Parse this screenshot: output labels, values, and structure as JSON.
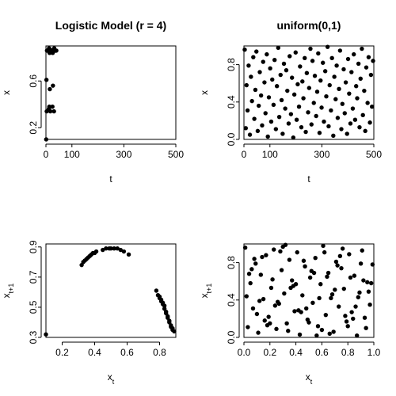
{
  "chart_data": [
    {
      "type": "scatter",
      "title": "Logistic Model (r = 4)",
      "xlabel": "t",
      "ylabel": "x",
      "xlim": [
        0,
        500
      ],
      "ylim": [
        0.1,
        0.9
      ],
      "x_ticks": [
        0,
        100,
        300,
        500
      ],
      "y_ticks": [
        0.2,
        0.6
      ],
      "x_tick_labels": [
        "0",
        "100",
        "300",
        "500"
      ],
      "y_tick_labels": [
        "0.2",
        "0.6"
      ],
      "grid": false,
      "marker_color": "#000000",
      "series": [
        {
          "x": [
            1,
            2,
            3,
            4,
            5,
            6,
            7,
            8,
            9,
            10,
            11,
            12,
            13,
            14,
            15,
            16,
            17,
            18,
            19,
            20,
            21,
            22,
            23,
            24,
            25,
            26,
            27,
            28,
            29,
            30,
            31,
            32,
            33,
            34,
            35,
            36,
            37,
            38,
            39,
            40
          ],
          "y": [
            0.1,
            0.61,
            0.34,
            0.86,
            0.86,
            0.86,
            0.86,
            0.86,
            0.86,
            0.86,
            0.36,
            0.88,
            0.38,
            0.84,
            0.53,
            0.87,
            0.34,
            0.86,
            0.86,
            0.86,
            0.86,
            0.86,
            0.86,
            0.86,
            0.38,
            0.84,
            0.56,
            0.86,
            0.86,
            0.86,
            0.34,
            0.88,
            0.86,
            0.86,
            0.86,
            0.86,
            0.86,
            0.86,
            0.86,
            0.86
          ]
        }
      ]
    },
    {
      "type": "scatter",
      "title": "uniform(0,1)",
      "xlabel": "t",
      "ylabel": "x",
      "xlim": [
        0,
        500
      ],
      "ylim": [
        0,
        1
      ],
      "x_ticks": [
        0,
        100,
        300,
        500
      ],
      "y_ticks": [
        0.0,
        0.4,
        0.8
      ],
      "x_tick_labels": [
        "0",
        "100",
        "300",
        "500"
      ],
      "y_tick_labels": [
        "0.0",
        "0.4",
        "0.8"
      ],
      "grid": false,
      "marker_color": "#000000",
      "series": [
        {
          "x": [
            3,
            7,
            10,
            14,
            18,
            23,
            27,
            31,
            36,
            40,
            44,
            48,
            53,
            57,
            61,
            66,
            70,
            74,
            79,
            83,
            88,
            92,
            96,
            101,
            105,
            109,
            114,
            118,
            123,
            127,
            132,
            136,
            141,
            145,
            149,
            154,
            159,
            163,
            167,
            172,
            176,
            181,
            185,
            190,
            194,
            199,
            203,
            207,
            212,
            216,
            221,
            225,
            229,
            234,
            238,
            242,
            247,
            251,
            256,
            260,
            264,
            269,
            273,
            278,
            282,
            286,
            291,
            295,
            299,
            304,
            308,
            313,
            317,
            322,
            326,
            330,
            335,
            339,
            344,
            348,
            353,
            357,
            361,
            366,
            370,
            375,
            379,
            384,
            388,
            392,
            397,
            401,
            405,
            410,
            414,
            419,
            423,
            428,
            432,
            436,
            441,
            445,
            449,
            454,
            458,
            463,
            467,
            471,
            476,
            480,
            485,
            489,
            493,
            497
          ],
          "y": [
            0.96,
            0.12,
            0.58,
            0.31,
            0.79,
            0.05,
            0.67,
            0.41,
            0.88,
            0.22,
            0.53,
            0.94,
            0.09,
            0.36,
            0.72,
            0.47,
            0.15,
            0.83,
            0.61,
            0.28,
            0.91,
            0.03,
            0.45,
            0.76,
            0.19,
            0.64,
            0.37,
            0.85,
            0.11,
            0.57,
            0.98,
            0.24,
            0.69,
            0.42,
            0.06,
            0.81,
            0.33,
            0.74,
            0.52,
            0.17,
            0.89,
            0.27,
            0.66,
            0.02,
            0.48,
            0.93,
            0.21,
            0.59,
            0.35,
            0.78,
            0.13,
            0.62,
            0.44,
            0.87,
            0.08,
            0.71,
            0.29,
            0.55,
            0.97,
            0.16,
            0.84,
            0.39,
            0.68,
            0.25,
            0.51,
            0.92,
            0.07,
            0.63,
            0.34,
            0.82,
            0.19,
            0.73,
            0.46,
            0.99,
            0.14,
            0.58,
            0.31,
            0.87,
            0.04,
            0.67,
            0.43,
            0.79,
            0.23,
            0.54,
            0.95,
            0.11,
            0.38,
            0.75,
            0.28,
            0.61,
            0.06,
            0.86,
            0.49,
            0.17,
            0.72,
            0.33,
            0.91,
            0.21,
            0.57,
            0.44,
            0.81,
            0.13,
            0.65,
            0.97,
            0.26,
            0.52,
            0.09,
            0.77,
            0.39,
            0.88,
            0.18,
            0.69,
            0.35,
            0.84
          ]
        }
      ]
    },
    {
      "type": "scatter",
      "title": "",
      "xlabel": "x",
      "xlabel_sub": "t",
      "ylabel": "x",
      "ylabel_sub": "t+1",
      "xlim": [
        0.1,
        0.9
      ],
      "ylim": [
        0.3,
        0.92
      ],
      "x_ticks": [
        0.2,
        0.4,
        0.6,
        0.8
      ],
      "y_ticks": [
        0.3,
        0.5,
        0.7,
        0.9
      ],
      "x_tick_labels": [
        "0.2",
        "0.4",
        "0.6",
        "0.8"
      ],
      "y_tick_labels": [
        "0.3",
        "0.5",
        "0.7",
        "0.9"
      ],
      "grid": false,
      "marker_color": "#000000",
      "series": [
        {
          "x": [
            0.1,
            0.32,
            0.33,
            0.34,
            0.35,
            0.36,
            0.37,
            0.38,
            0.39,
            0.4,
            0.41,
            0.45,
            0.47,
            0.49,
            0.5,
            0.52,
            0.54,
            0.56,
            0.58,
            0.61,
            0.78,
            0.79,
            0.8,
            0.8,
            0.81,
            0.81,
            0.82,
            0.82,
            0.83,
            0.83,
            0.84,
            0.84,
            0.85,
            0.85,
            0.86,
            0.86,
            0.87,
            0.87,
            0.88,
            0.88,
            0.89
          ],
          "y": [
            0.32,
            0.78,
            0.8,
            0.81,
            0.82,
            0.83,
            0.84,
            0.85,
            0.86,
            0.86,
            0.87,
            0.88,
            0.89,
            0.89,
            0.89,
            0.89,
            0.89,
            0.88,
            0.87,
            0.85,
            0.61,
            0.58,
            0.57,
            0.56,
            0.55,
            0.54,
            0.53,
            0.52,
            0.51,
            0.49,
            0.47,
            0.46,
            0.44,
            0.43,
            0.41,
            0.4,
            0.38,
            0.37,
            0.36,
            0.35,
            0.34
          ]
        }
      ]
    },
    {
      "type": "scatter",
      "title": "",
      "xlabel": "x",
      "xlabel_sub": "t",
      "ylabel": "x",
      "ylabel_sub": "t+1",
      "xlim": [
        0,
        1
      ],
      "ylim": [
        0,
        1
      ],
      "x_ticks": [
        0.0,
        0.2,
        0.4,
        0.6,
        0.8,
        1.0
      ],
      "y_ticks": [
        0.0,
        0.4,
        0.8
      ],
      "x_tick_labels": [
        "0.0",
        "0.2",
        "0.4",
        "0.6",
        "0.8",
        "1.0"
      ],
      "y_tick_labels": [
        "0.0",
        "0.4",
        "0.8"
      ],
      "grid": false,
      "marker_color": "#000000",
      "series": [
        {
          "x": [
            0.01,
            0.03,
            0.05,
            0.07,
            0.09,
            0.11,
            0.13,
            0.15,
            0.17,
            0.19,
            0.21,
            0.23,
            0.25,
            0.27,
            0.29,
            0.31,
            0.33,
            0.35,
            0.37,
            0.39,
            0.41,
            0.43,
            0.45,
            0.47,
            0.49,
            0.51,
            0.53,
            0.55,
            0.57,
            0.59,
            0.61,
            0.63,
            0.65,
            0.67,
            0.69,
            0.71,
            0.73,
            0.75,
            0.77,
            0.79,
            0.81,
            0.83,
            0.85,
            0.87,
            0.89,
            0.91,
            0.93,
            0.95,
            0.97,
            0.99,
            0.02,
            0.06,
            0.1,
            0.14,
            0.18,
            0.22,
            0.26,
            0.3,
            0.34,
            0.38,
            0.42,
            0.46,
            0.5,
            0.54,
            0.58,
            0.62,
            0.66,
            0.7,
            0.74,
            0.78,
            0.82,
            0.86,
            0.9,
            0.94,
            0.98,
            0.04,
            0.12,
            0.2,
            0.28,
            0.36,
            0.44,
            0.52,
            0.6,
            0.68,
            0.76,
            0.84,
            0.92,
            0.08,
            0.24,
            0.4,
            0.56,
            0.72,
            0.88,
            0.16,
            0.32,
            0.48,
            0.64,
            0.8,
            0.96
          ],
          "y": [
            0.96,
            0.11,
            0.58,
            0.31,
            0.79,
            0.05,
            0.67,
            0.41,
            0.88,
            0.22,
            0.53,
            0.94,
            0.09,
            0.36,
            0.72,
            0.47,
            0.15,
            0.83,
            0.61,
            0.28,
            0.91,
            0.03,
            0.45,
            0.76,
            0.19,
            0.64,
            0.37,
            0.85,
            0.12,
            0.57,
            0.98,
            0.24,
            0.69,
            0.42,
            0.06,
            0.81,
            0.33,
            0.74,
            0.52,
            0.17,
            0.89,
            0.27,
            0.66,
            0.02,
            0.48,
            0.93,
            0.21,
            0.59,
            0.35,
            0.78,
            0.44,
            0.73,
            0.25,
            0.86,
            0.13,
            0.62,
            0.38,
            0.97,
            0.07,
            0.55,
            0.29,
            0.82,
            0.16,
            0.69,
            0.42,
            0.91,
            0.04,
            0.51,
            0.87,
            0.23,
            0.64,
            0.33,
            0.79,
            0.1,
            0.58,
            0.68,
            0.39,
            0.15,
            0.92,
            0.53,
            0.27,
            0.71,
            0.08,
            0.46,
            0.95,
            0.2,
            0.61,
            0.84,
            0.34,
            0.57,
            0.02,
            0.77,
            0.43,
            0.18,
            0.99,
            0.31,
            0.65,
            0.12,
            0.49
          ]
        }
      ]
    }
  ]
}
